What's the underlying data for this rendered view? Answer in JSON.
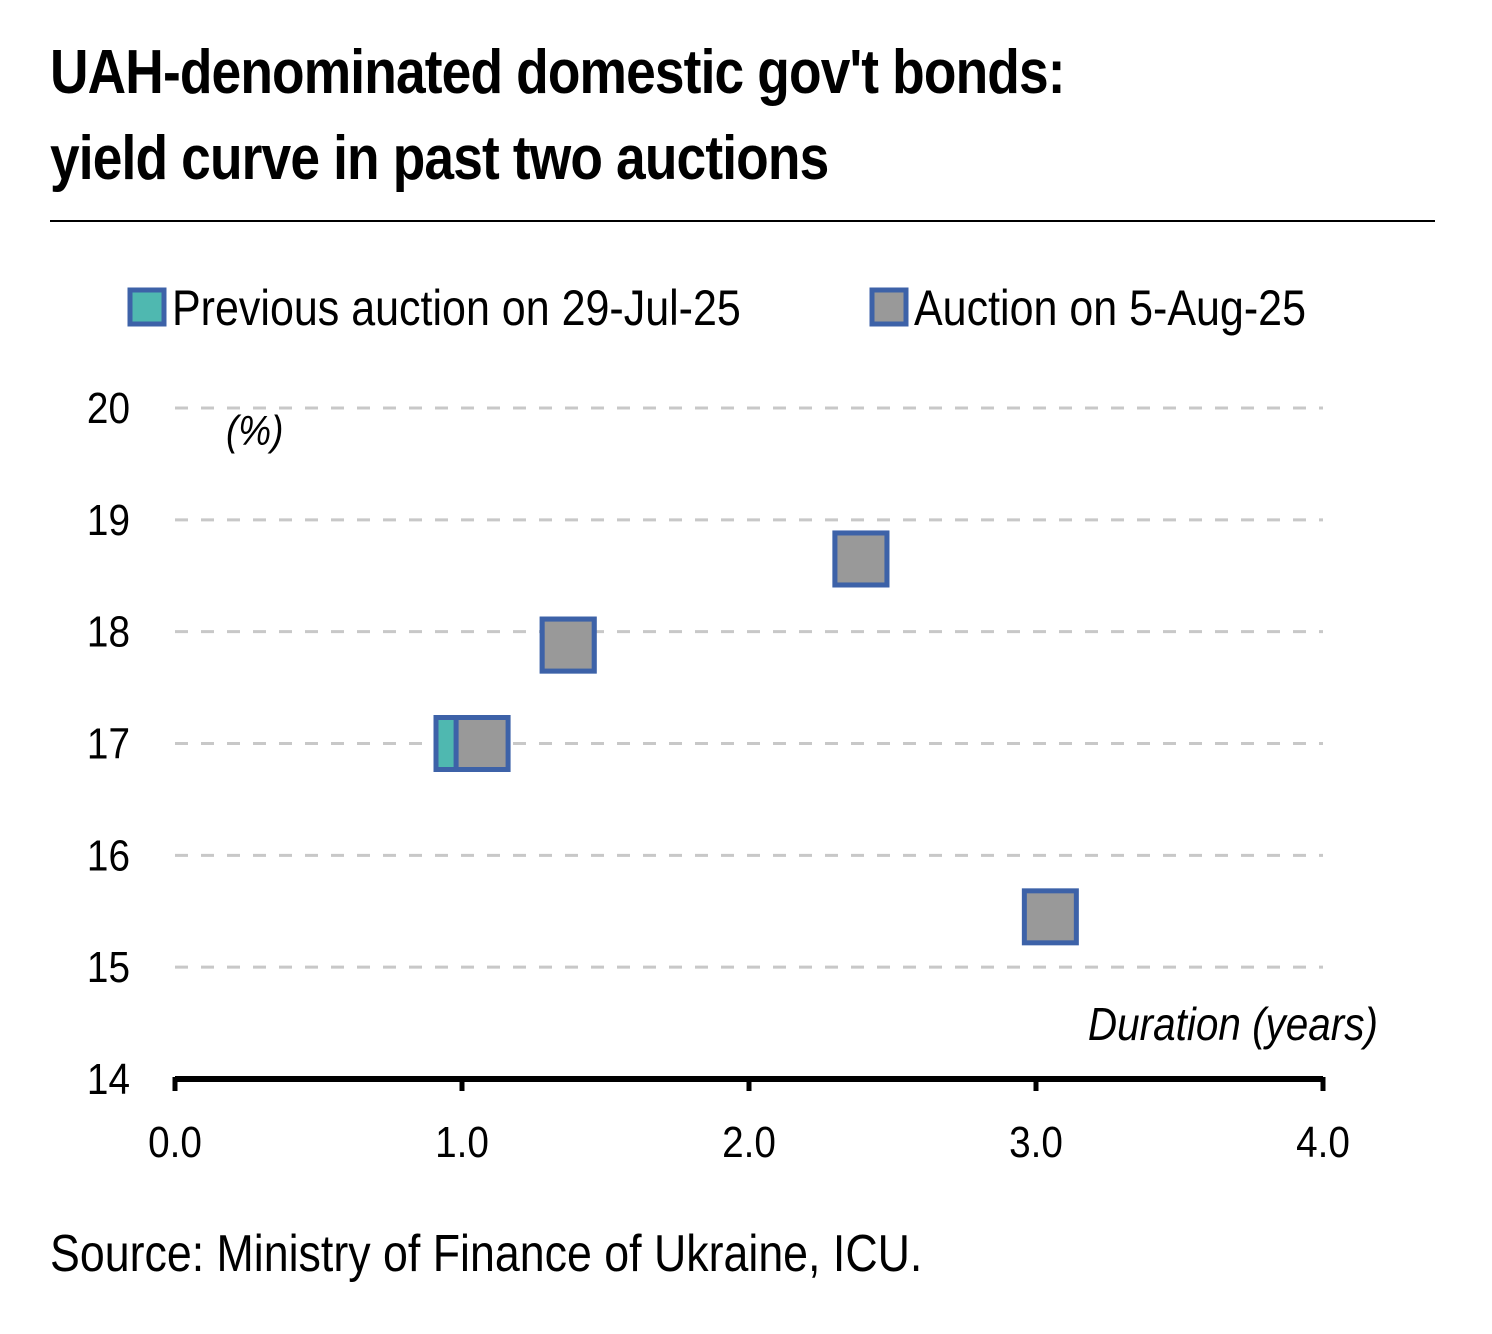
{
  "title_lines": [
    "UAH-denominated domestic gov't bonds:",
    "yield curve in past two auctions"
  ],
  "source": "Source: Ministry of Finance of Ukraine, ICU.",
  "colors": {
    "previous_fill": "#4fb8b0",
    "current_fill": "#999999",
    "marker_border": "#3d62a8",
    "grid": "#c8c8c8",
    "axis": "#000000"
  },
  "chart_data": {
    "type": "scatter",
    "xlabel": "Duration (years)",
    "ylabel": "(%)",
    "xlim": [
      0,
      4
    ],
    "ylim": [
      14,
      20
    ],
    "x_ticks": [
      "0.0",
      "1.0",
      "2.0",
      "3.0",
      "4.0"
    ],
    "y_ticks": [
      "14",
      "15",
      "16",
      "17",
      "18",
      "19",
      "20"
    ],
    "grid": "horizontal dashed",
    "legend_position": "top",
    "series": [
      {
        "name": "Previous auction on 29-Jul-25",
        "marker": "square",
        "color": "#4fb8b0",
        "points": [
          {
            "x": 1.0,
            "y": 17.0
          },
          {
            "x": 1.37,
            "y": 17.88
          },
          {
            "x": 2.39,
            "y": 18.65
          }
        ]
      },
      {
        "name": "Auction on 5-Aug-25",
        "marker": "square",
        "color": "#999999",
        "points": [
          {
            "x": 1.07,
            "y": 17.0
          },
          {
            "x": 1.37,
            "y": 17.88
          },
          {
            "x": 2.39,
            "y": 18.65
          },
          {
            "x": 3.05,
            "y": 15.45
          }
        ]
      }
    ]
  }
}
